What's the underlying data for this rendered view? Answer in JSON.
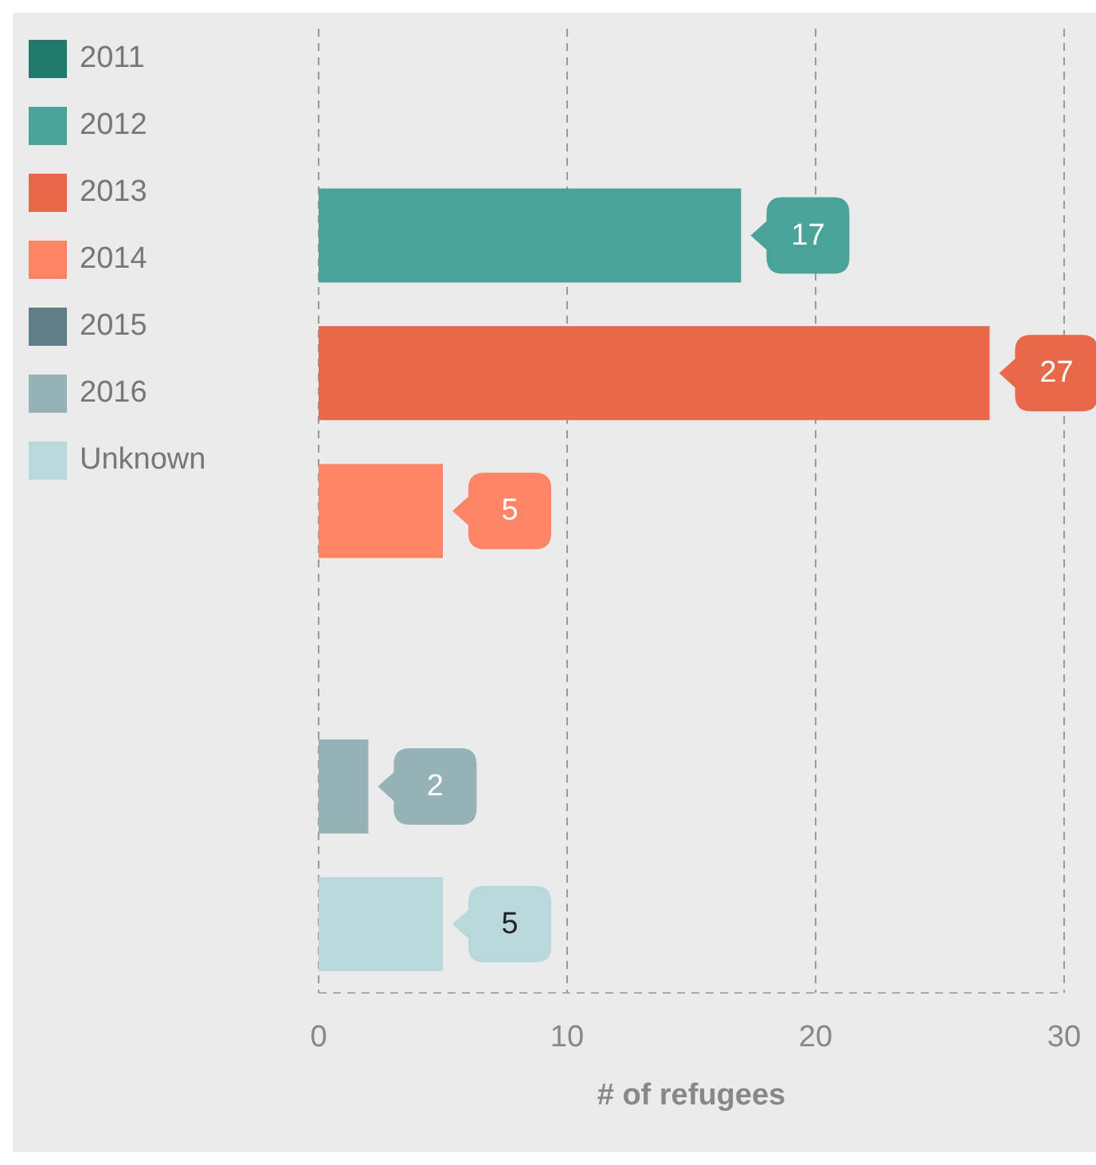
{
  "chart_data": {
    "type": "bar",
    "orientation": "horizontal",
    "stacked": true,
    "xlabel": "# of refugees",
    "categories": [
      null,
      null,
      null,
      null,
      null,
      null,
      null
    ],
    "series": [
      {
        "name": "2011",
        "color": "#1f7a6c",
        "values": [
          null,
          null,
          null,
          null,
          null,
          null,
          null
        ]
      },
      {
        "name": "2012",
        "color": "#4aa398",
        "values": [
          null,
          17,
          null,
          null,
          null,
          null,
          null
        ]
      },
      {
        "name": "2013",
        "color": "#e8694a",
        "values": [
          null,
          null,
          27,
          null,
          null,
          null,
          null
        ]
      },
      {
        "name": "2014",
        "color": "#fd8464",
        "values": [
          null,
          null,
          null,
          5,
          null,
          null,
          null
        ]
      },
      {
        "name": "2015",
        "color": "#5e7f86",
        "values": [
          null,
          null,
          null,
          null,
          null,
          null,
          null
        ]
      },
      {
        "name": "2016",
        "color": "#95b2b7",
        "values": [
          null,
          null,
          null,
          null,
          null,
          2,
          null
        ]
      },
      {
        "name": "Unknown",
        "color": "#b8d8dc",
        "values": [
          null,
          null,
          null,
          null,
          null,
          null,
          5
        ]
      }
    ],
    "xlim": [
      0,
      30
    ],
    "xticks": [
      0,
      10,
      20,
      30
    ],
    "grid": "x",
    "legend": "top left",
    "tick_labels": "x",
    "data_labels": true
  }
}
